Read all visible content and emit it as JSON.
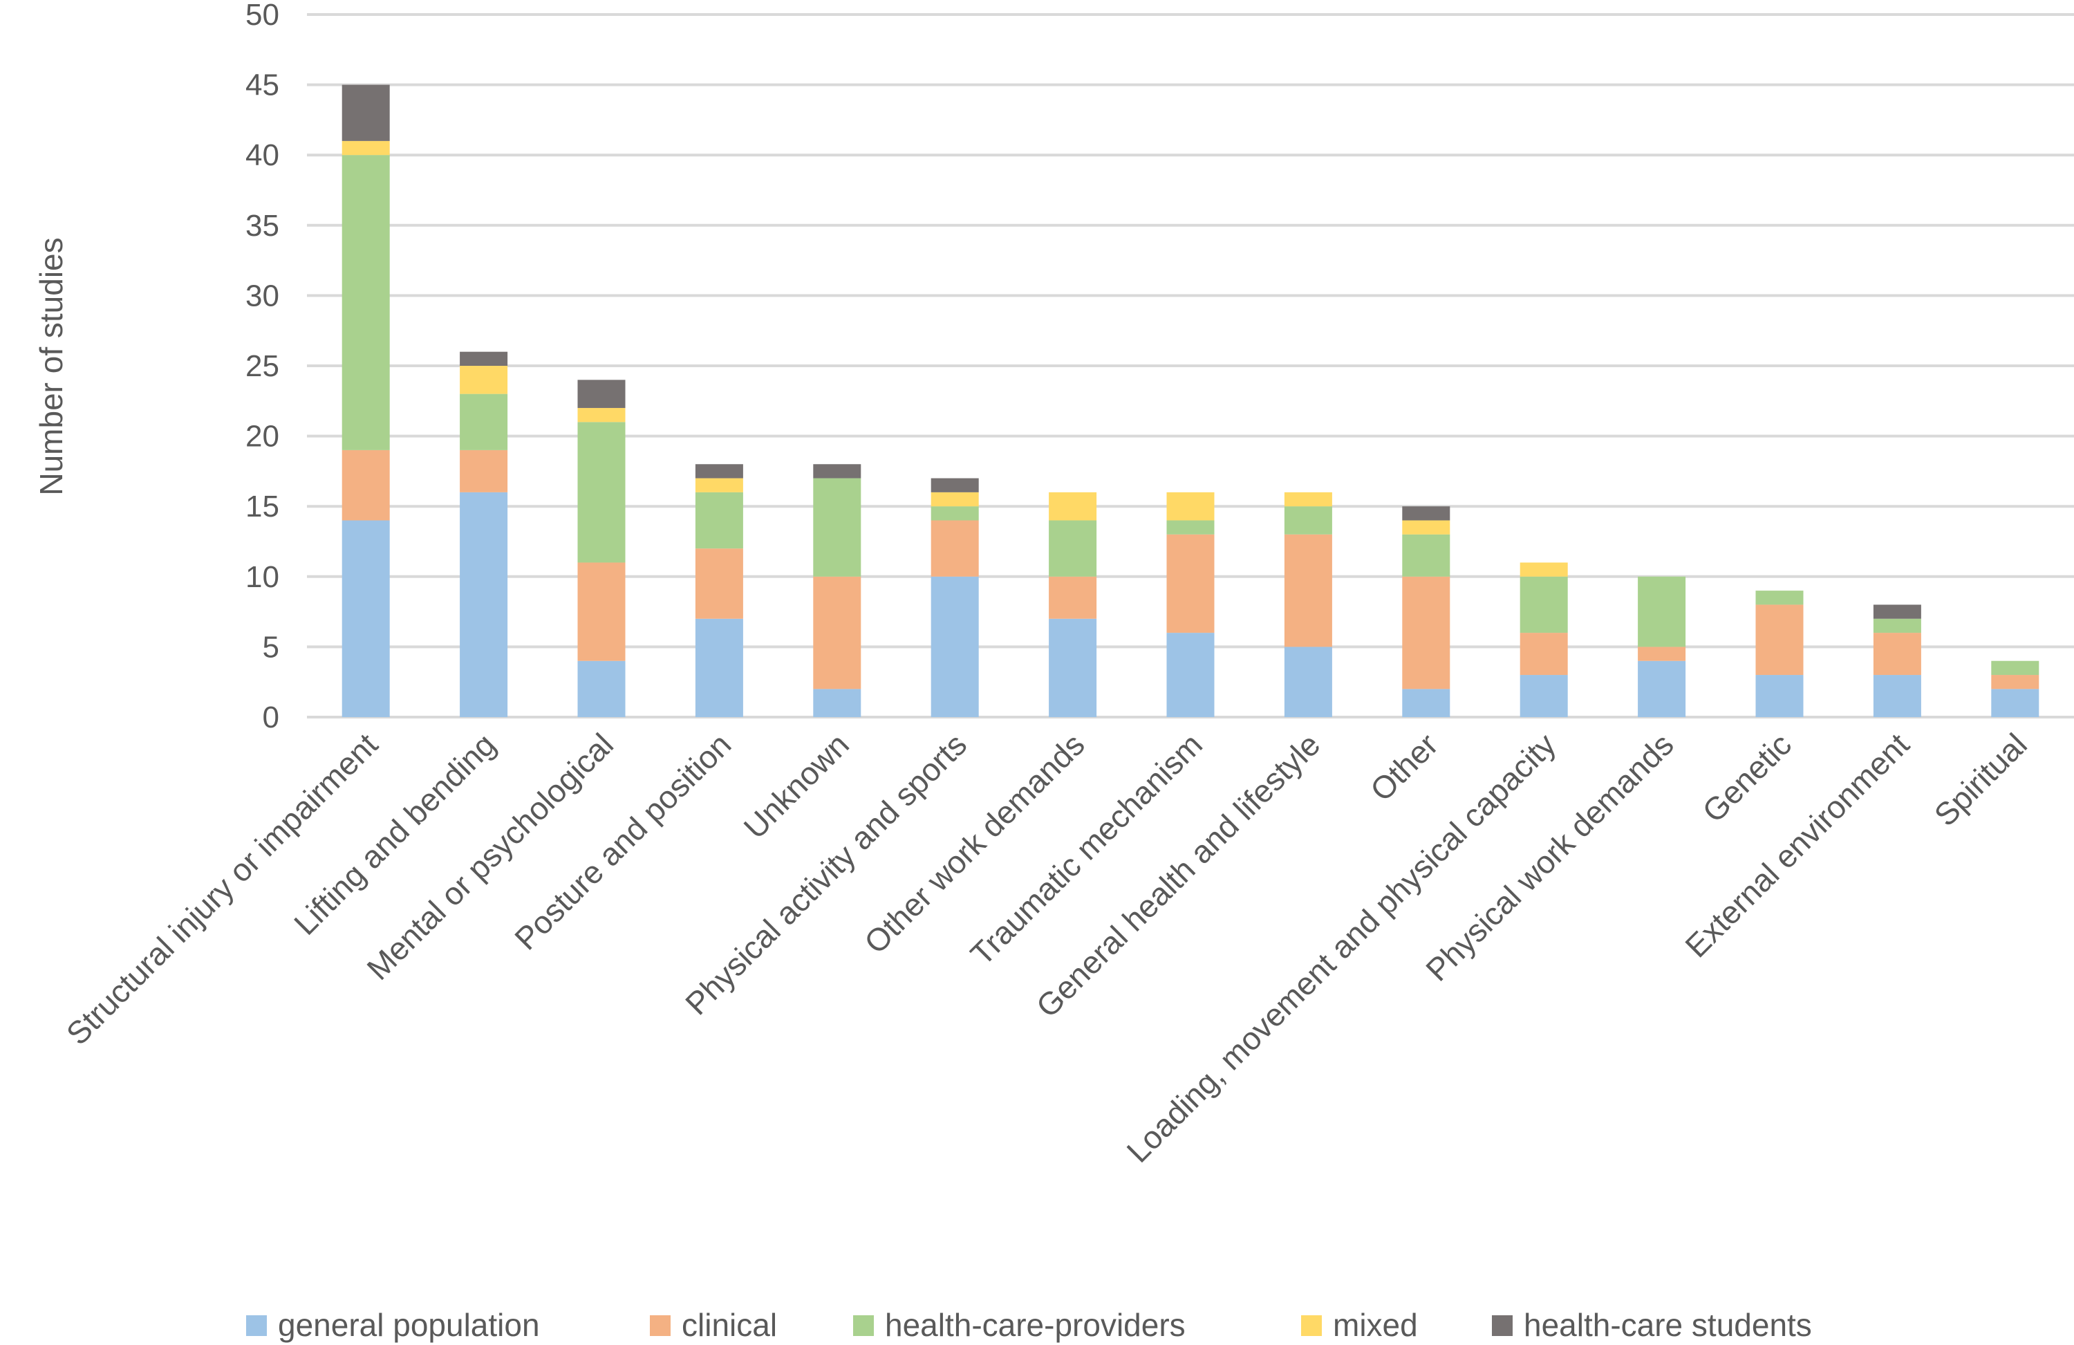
{
  "chart_data": {
    "type": "bar",
    "stacked": true,
    "title": "",
    "xlabel": "",
    "ylabel": "Number of studies",
    "ylim": [
      0,
      50
    ],
    "yticks": [
      0,
      5,
      10,
      15,
      20,
      25,
      30,
      35,
      40,
      45,
      50
    ],
    "grid": true,
    "legend_position": "bottom",
    "categories": [
      "Structural injury or impairment",
      "Lifting and bending",
      "Mental or psychological",
      "Posture and position",
      "Unknown",
      "Physical activity and sports",
      "Other work demands",
      "Traumatic mechanism",
      "General health and lifestyle",
      "Other",
      "Loading, movement and physical capacity",
      "Physical work demands",
      "Genetic",
      "External environment",
      "Spiritual"
    ],
    "series": [
      {
        "name": "general population",
        "color": "#9DC3E6",
        "values": [
          14,
          16,
          4,
          7,
          2,
          10,
          7,
          6,
          5,
          2,
          3,
          4,
          3,
          3,
          2
        ]
      },
      {
        "name": "clinical",
        "color": "#F4B183",
        "values": [
          5,
          3,
          7,
          5,
          8,
          4,
          3,
          7,
          8,
          8,
          3,
          1,
          5,
          3,
          1
        ]
      },
      {
        "name": "health-care-providers",
        "color": "#A9D18E",
        "values": [
          21,
          4,
          10,
          4,
          7,
          1,
          4,
          1,
          2,
          3,
          4,
          5,
          1,
          1,
          1
        ]
      },
      {
        "name": "mixed",
        "color": "#FFD966",
        "values": [
          1,
          2,
          1,
          1,
          0,
          1,
          2,
          2,
          1,
          1,
          1,
          0,
          0,
          0,
          0
        ]
      },
      {
        "name": "health-care students",
        "color": "#767171",
        "values": [
          4,
          1,
          2,
          1,
          1,
          1,
          0,
          0,
          0,
          1,
          0,
          0,
          0,
          1,
          0
        ]
      }
    ]
  }
}
